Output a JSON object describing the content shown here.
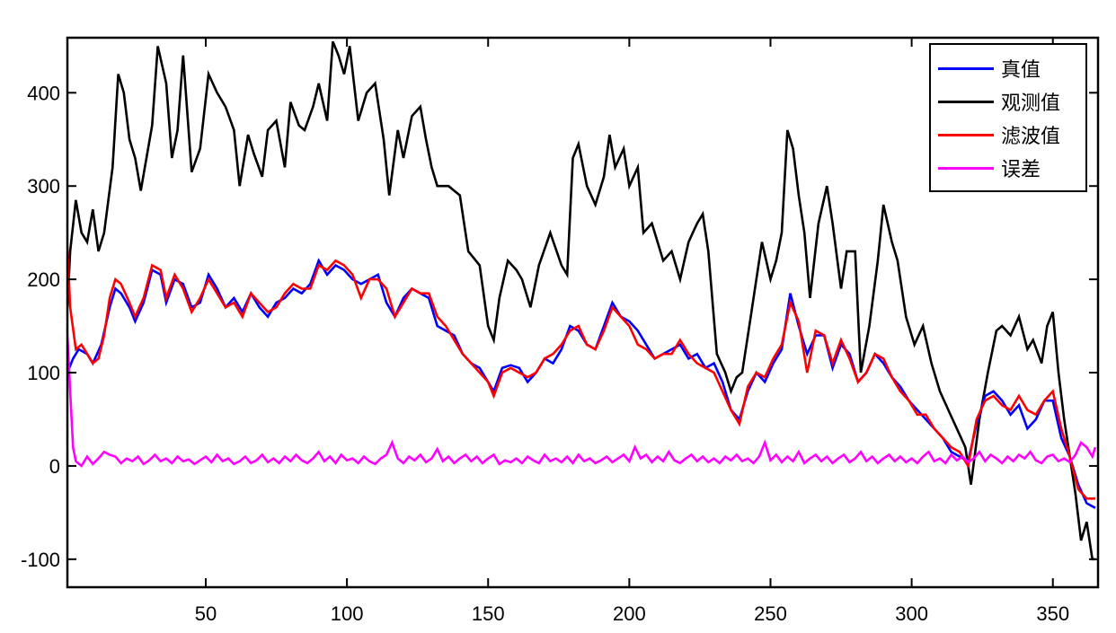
{
  "chart_data": {
    "type": "line",
    "title": "",
    "xlabel": "",
    "ylabel": "",
    "xlim": [
      1,
      366
    ],
    "ylim": [
      -130,
      459
    ],
    "grid": false,
    "legend_position": "upper right",
    "x_ticks": [
      50,
      100,
      150,
      200,
      250,
      300,
      350
    ],
    "y_ticks": [
      -100,
      0,
      100,
      200,
      300,
      400
    ],
    "series": [
      {
        "name": "真值",
        "color": "#0000ff",
        "x": [
          1,
          3,
          5,
          8,
          10,
          13,
          16,
          18,
          20,
          23,
          25,
          28,
          31,
          34,
          36,
          39,
          42,
          45,
          48,
          51,
          54,
          57,
          60,
          63,
          66,
          69,
          72,
          75,
          78,
          81,
          84,
          87,
          90,
          93,
          96,
          99,
          102,
          105,
          108,
          111,
          114,
          117,
          120,
          123,
          126,
          129,
          132,
          135,
          138,
          141,
          144,
          147,
          150,
          152,
          155,
          158,
          161,
          164,
          167,
          170,
          173,
          176,
          179,
          182,
          185,
          188,
          191,
          194,
          197,
          200,
          203,
          206,
          209,
          212,
          215,
          218,
          221,
          224,
          227,
          230,
          233,
          236,
          239,
          242,
          245,
          248,
          251,
          254,
          257,
          260,
          263,
          266,
          269,
          272,
          275,
          278,
          281,
          284,
          287,
          290,
          293,
          296,
          299,
          302,
          305,
          308,
          311,
          314,
          317,
          320,
          323,
          326,
          329,
          332,
          335,
          338,
          341,
          344,
          347,
          350,
          353,
          356,
          359,
          362,
          365
        ],
        "values": [
          100,
          115,
          125,
          120,
          110,
          130,
          170,
          190,
          185,
          170,
          155,
          175,
          210,
          205,
          175,
          200,
          195,
          170,
          175,
          205,
          190,
          170,
          180,
          165,
          185,
          170,
          160,
          175,
          180,
          190,
          185,
          195,
          220,
          205,
          215,
          210,
          200,
          195,
          200,
          205,
          175,
          160,
          180,
          190,
          185,
          180,
          150,
          145,
          140,
          120,
          110,
          105,
          90,
          80,
          105,
          108,
          105,
          90,
          100,
          115,
          110,
          125,
          150,
          145,
          130,
          125,
          150,
          175,
          160,
          155,
          145,
          130,
          115,
          120,
          125,
          130,
          115,
          120,
          105,
          110,
          90,
          60,
          50,
          80,
          100,
          90,
          110,
          125,
          185,
          150,
          120,
          140,
          140,
          105,
          130,
          120,
          90,
          100,
          120,
          110,
          95,
          85,
          70,
          60,
          50,
          40,
          30,
          15,
          10,
          5,
          45,
          75,
          80,
          70,
          55,
          65,
          40,
          50,
          70,
          70,
          30,
          10,
          -20,
          -40,
          -45
        ]
      },
      {
        "name": "观测值",
        "color": "#000000",
        "x": [
          1,
          2,
          4,
          6,
          8,
          10,
          12,
          14,
          17,
          19,
          21,
          23,
          25,
          27,
          29,
          31,
          33,
          36,
          38,
          40,
          42,
          45,
          48,
          51,
          54,
          57,
          60,
          62,
          65,
          67,
          70,
          72,
          75,
          78,
          80,
          83,
          85,
          88,
          90,
          93,
          95,
          97,
          99,
          101,
          104,
          107,
          110,
          113,
          115,
          118,
          120,
          123,
          126,
          128,
          130,
          132,
          136,
          140,
          143,
          147,
          150,
          152,
          154,
          157,
          160,
          162,
          165,
          168,
          172,
          176,
          178,
          180,
          182,
          185,
          188,
          191,
          193,
          195,
          198,
          200,
          203,
          205,
          208,
          212,
          215,
          218,
          221,
          224,
          226,
          228,
          231,
          234,
          236,
          238,
          240,
          243,
          247,
          250,
          252,
          254,
          256,
          258,
          260,
          262,
          264,
          267,
          270,
          272,
          275,
          277,
          280,
          282,
          285,
          288,
          290,
          293,
          295,
          298,
          301,
          304,
          307,
          310,
          313,
          316,
          319,
          321,
          324,
          327,
          330,
          332,
          335,
          338,
          341,
          343,
          346,
          348,
          350,
          352,
          354,
          356,
          358,
          360,
          362,
          364,
          365
        ],
        "values": [
          170,
          230,
          285,
          250,
          240,
          275,
          230,
          250,
          320,
          420,
          400,
          350,
          330,
          295,
          330,
          365,
          450,
          410,
          330,
          360,
          440,
          315,
          340,
          420,
          400,
          385,
          360,
          300,
          355,
          335,
          310,
          360,
          370,
          320,
          390,
          365,
          360,
          385,
          410,
          370,
          455,
          440,
          420,
          450,
          370,
          400,
          410,
          350,
          290,
          360,
          330,
          375,
          385,
          350,
          320,
          300,
          300,
          290,
          230,
          215,
          150,
          135,
          180,
          220,
          210,
          200,
          170,
          215,
          250,
          215,
          205,
          330,
          345,
          300,
          280,
          310,
          355,
          320,
          340,
          300,
          320,
          250,
          260,
          220,
          230,
          200,
          240,
          260,
          270,
          230,
          120,
          100,
          80,
          95,
          100,
          160,
          240,
          200,
          220,
          250,
          360,
          340,
          290,
          250,
          180,
          260,
          300,
          260,
          190,
          230,
          230,
          100,
          150,
          220,
          280,
          240,
          220,
          160,
          130,
          150,
          110,
          80,
          60,
          40,
          20,
          -20,
          50,
          100,
          145,
          150,
          140,
          160,
          125,
          135,
          110,
          150,
          165,
          100,
          50,
          10,
          -30,
          -80,
          -60,
          -100,
          -100
        ]
      },
      {
        "name": "滤波值",
        "color": "#ff0000",
        "x": [
          1,
          2,
          4,
          6,
          8,
          10,
          12,
          14,
          16,
          18,
          20,
          23,
          25,
          28,
          31,
          34,
          36,
          39,
          42,
          45,
          48,
          51,
          54,
          57,
          60,
          63,
          66,
          69,
          72,
          75,
          78,
          81,
          84,
          87,
          90,
          93,
          96,
          99,
          102,
          105,
          108,
          111,
          114,
          117,
          120,
          123,
          126,
          129,
          132,
          135,
          138,
          141,
          144,
          147,
          150,
          152,
          155,
          158,
          161,
          164,
          167,
          170,
          173,
          176,
          179,
          182,
          185,
          188,
          191,
          194,
          197,
          200,
          203,
          206,
          209,
          212,
          215,
          218,
          221,
          224,
          227,
          230,
          233,
          236,
          239,
          242,
          245,
          248,
          251,
          254,
          257,
          260,
          263,
          266,
          269,
          272,
          275,
          278,
          281,
          284,
          287,
          290,
          293,
          296,
          299,
          302,
          305,
          308,
          311,
          314,
          317,
          320,
          323,
          326,
          329,
          332,
          335,
          338,
          341,
          344,
          347,
          350,
          353,
          356,
          359,
          362,
          365
        ],
        "values": [
          235,
          170,
          125,
          130,
          120,
          110,
          115,
          140,
          180,
          200,
          195,
          175,
          160,
          180,
          215,
          210,
          180,
          205,
          190,
          165,
          180,
          200,
          185,
          170,
          175,
          160,
          185,
          175,
          165,
          170,
          185,
          195,
          190,
          190,
          215,
          210,
          220,
          215,
          205,
          180,
          200,
          200,
          190,
          160,
          175,
          190,
          185,
          185,
          160,
          150,
          135,
          120,
          110,
          100,
          90,
          75,
          100,
          105,
          100,
          95,
          100,
          115,
          120,
          130,
          145,
          150,
          130,
          125,
          145,
          170,
          160,
          150,
          130,
          125,
          115,
          120,
          120,
          135,
          120,
          110,
          105,
          100,
          80,
          60,
          45,
          85,
          100,
          95,
          115,
          130,
          175,
          155,
          100,
          145,
          140,
          110,
          135,
          115,
          90,
          100,
          120,
          115,
          95,
          80,
          70,
          55,
          55,
          40,
          30,
          20,
          15,
          0,
          50,
          70,
          75,
          65,
          60,
          75,
          60,
          55,
          70,
          80,
          40,
          10,
          -25,
          -35,
          -35
        ]
      },
      {
        "name": "误差",
        "color": "#ff00ff",
        "x": [
          1,
          2,
          3,
          4,
          6,
          8,
          10,
          12,
          14,
          16,
          18,
          20,
          22,
          24,
          26,
          28,
          30,
          32,
          34,
          36,
          38,
          40,
          42,
          44,
          46,
          48,
          50,
          52,
          54,
          56,
          58,
          60,
          62,
          64,
          66,
          68,
          70,
          72,
          74,
          76,
          78,
          80,
          82,
          84,
          86,
          88,
          90,
          92,
          94,
          96,
          98,
          100,
          102,
          104,
          106,
          108,
          110,
          112,
          114,
          116,
          118,
          120,
          122,
          124,
          126,
          128,
          130,
          132,
          134,
          136,
          138,
          140,
          142,
          144,
          146,
          148,
          150,
          152,
          154,
          156,
          158,
          160,
          162,
          164,
          166,
          168,
          170,
          172,
          174,
          176,
          178,
          180,
          182,
          184,
          186,
          188,
          190,
          192,
          194,
          196,
          198,
          200,
          202,
          204,
          206,
          208,
          210,
          212,
          214,
          216,
          218,
          220,
          222,
          224,
          226,
          228,
          230,
          232,
          234,
          236,
          238,
          240,
          242,
          244,
          246,
          248,
          250,
          252,
          254,
          256,
          258,
          260,
          262,
          264,
          266,
          268,
          270,
          272,
          274,
          276,
          278,
          280,
          282,
          284,
          286,
          288,
          290,
          292,
          294,
          296,
          298,
          300,
          302,
          304,
          306,
          308,
          310,
          312,
          314,
          316,
          318,
          320,
          322,
          324,
          326,
          328,
          330,
          332,
          334,
          336,
          338,
          340,
          342,
          344,
          346,
          348,
          350,
          352,
          354,
          356,
          358,
          360,
          362,
          364,
          365
        ],
        "values": [
          140,
          80,
          20,
          5,
          0,
          10,
          2,
          8,
          15,
          12,
          10,
          3,
          8,
          5,
          10,
          2,
          6,
          12,
          5,
          8,
          3,
          10,
          5,
          7,
          2,
          6,
          10,
          4,
          12,
          5,
          8,
          2,
          5,
          10,
          3,
          6,
          12,
          4,
          8,
          3,
          10,
          5,
          12,
          6,
          3,
          8,
          15,
          5,
          10,
          3,
          12,
          6,
          8,
          3,
          10,
          5,
          2,
          8,
          12,
          25,
          8,
          3,
          10,
          6,
          12,
          4,
          8,
          18,
          5,
          10,
          3,
          8,
          12,
          5,
          10,
          3,
          8,
          12,
          2,
          6,
          4,
          8,
          3,
          10,
          6,
          3,
          12,
          5,
          8,
          4,
          10,
          3,
          12,
          5,
          8,
          3,
          6,
          10,
          4,
          8,
          12,
          5,
          20,
          8,
          12,
          4,
          10,
          5,
          15,
          6,
          3,
          8,
          12,
          5,
          10,
          4,
          8,
          3,
          10,
          6,
          12,
          5,
          8,
          3,
          10,
          25,
          6,
          12,
          4,
          10,
          5,
          15,
          3,
          8,
          12,
          5,
          10,
          3,
          8,
          12,
          4,
          8,
          15,
          5,
          10,
          3,
          8,
          12,
          5,
          10,
          4,
          8,
          3,
          10,
          15,
          5,
          8,
          3,
          12,
          6,
          10,
          4,
          8,
          15,
          5,
          12,
          8,
          3,
          10,
          5,
          12,
          8,
          15,
          6,
          3,
          10,
          12,
          5,
          8,
          4,
          12,
          25,
          20,
          10,
          20
        ]
      }
    ]
  },
  "legend": {
    "items": [
      {
        "label": "真值",
        "color": "#0000ff"
      },
      {
        "label": "观测值",
        "color": "#000000"
      },
      {
        "label": "滤波值",
        "color": "#ff0000"
      },
      {
        "label": "误差",
        "color": "#ff00ff"
      }
    ]
  },
  "axes": {
    "x_tick_labels": [
      "50",
      "100",
      "150",
      "200",
      "250",
      "300",
      "350"
    ],
    "y_tick_labels": [
      "-100",
      "0",
      "100",
      "200",
      "300",
      "400"
    ]
  }
}
